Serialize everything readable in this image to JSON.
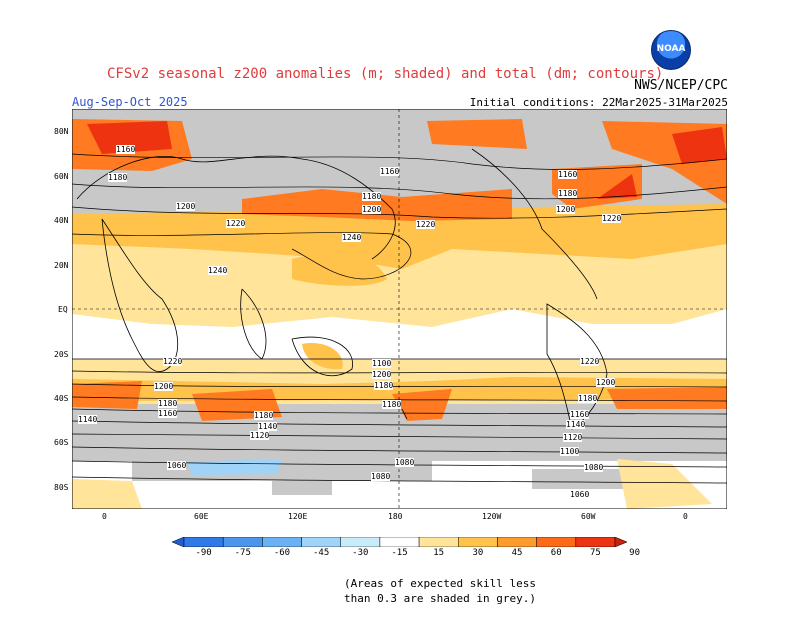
{
  "header": {
    "title": "CFSv2 seasonal z200 anomalies (m; shaded) and total (dm; contours)",
    "agency": "NWS/NCEP/CPC",
    "season": "Aug-Sep-Oct 2025",
    "initial_conditions": "Initial conditions: 22Mar2025-31Mar2025",
    "logo_text": "NOAA"
  },
  "axes": {
    "lat_labels": [
      "80N",
      "60N",
      "40N",
      "20N",
      "EQ",
      "20S",
      "40S",
      "60S",
      "80S"
    ],
    "lon_labels": [
      "0",
      "60E",
      "120E",
      "180",
      "120W",
      "60W",
      "0"
    ]
  },
  "contour_labels": [
    "1160",
    "1180",
    "1200",
    "1220",
    "1240",
    "1160",
    "1180",
    "1200",
    "1220",
    "1240",
    "1160",
    "1180",
    "1200",
    "1220",
    "1220",
    "1180",
    "1160",
    "1140",
    "1120",
    "1100",
    "1080",
    "1060",
    "1200",
    "1180",
    "1140",
    "1120",
    "1100",
    "1060",
    "1180",
    "1220",
    "1200",
    "1180",
    "1160",
    "1140",
    "1120",
    "1100",
    "1080",
    "1060"
  ],
  "colorbar": {
    "labels": [
      "-90",
      "-75",
      "-60",
      "-45",
      "-30",
      "-15",
      "15",
      "30",
      "45",
      "60",
      "75",
      "90"
    ],
    "colors": [
      "#1f5fd6",
      "#2f79e8",
      "#4b95ef",
      "#6bb2f5",
      "#9fd3f7",
      "#c8ecf9",
      "#ffffff",
      "#ffe49a",
      "#ffc24a",
      "#ff9b2a",
      "#ff6a18",
      "#ee3311",
      "#c91f0f"
    ]
  },
  "note": {
    "line1": "(Areas of expected skill less",
    "line2": "than 0.3 are shaded in grey.)"
  },
  "colors": {
    "title": "#e03c3c",
    "season": "#2f55d4",
    "skill_grey": "#c8c8c8"
  }
}
